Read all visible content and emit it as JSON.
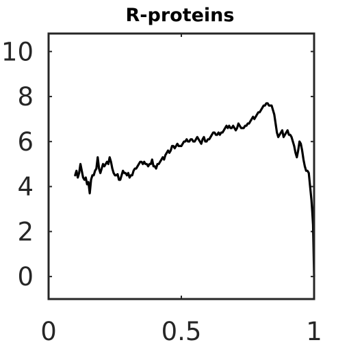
{
  "chart_data": {
    "type": "line",
    "title": "R-proteins",
    "xlabel": "",
    "ylabel": "",
    "xlim": [
      0,
      1
    ],
    "ylim": [
      -1,
      10.8
    ],
    "xticks": [
      0,
      0.5,
      1
    ],
    "xtick_labels": [
      "0",
      "0.5",
      "1"
    ],
    "yticks": [
      0,
      2,
      4,
      6,
      8,
      10
    ],
    "ytick_labels": [
      "0",
      "2",
      "4",
      "6",
      "8",
      "10"
    ],
    "grid": false,
    "series": [
      {
        "color": "#000000",
        "x": [
          0.1,
          0.105,
          0.11,
          0.115,
          0.12,
          0.125,
          0.13,
          0.135,
          0.14,
          0.145,
          0.15,
          0.155,
          0.16,
          0.165,
          0.17,
          0.175,
          0.18,
          0.185,
          0.19,
          0.195,
          0.2,
          0.205,
          0.21,
          0.215,
          0.22,
          0.225,
          0.23,
          0.235,
          0.24,
          0.245,
          0.25,
          0.255,
          0.26,
          0.265,
          0.27,
          0.275,
          0.28,
          0.285,
          0.29,
          0.295,
          0.3,
          0.305,
          0.31,
          0.315,
          0.32,
          0.325,
          0.33,
          0.335,
          0.34,
          0.345,
          0.35,
          0.355,
          0.36,
          0.365,
          0.37,
          0.375,
          0.38,
          0.385,
          0.39,
          0.395,
          0.4,
          0.405,
          0.41,
          0.415,
          0.42,
          0.425,
          0.43,
          0.435,
          0.44,
          0.445,
          0.45,
          0.455,
          0.46,
          0.465,
          0.47,
          0.475,
          0.48,
          0.485,
          0.49,
          0.495,
          0.5,
          0.505,
          0.51,
          0.515,
          0.52,
          0.525,
          0.53,
          0.535,
          0.54,
          0.545,
          0.55,
          0.555,
          0.56,
          0.565,
          0.57,
          0.575,
          0.58,
          0.585,
          0.59,
          0.595,
          0.6,
          0.605,
          0.61,
          0.615,
          0.62,
          0.625,
          0.63,
          0.635,
          0.64,
          0.645,
          0.65,
          0.655,
          0.66,
          0.665,
          0.67,
          0.675,
          0.68,
          0.685,
          0.69,
          0.695,
          0.7,
          0.705,
          0.71,
          0.715,
          0.72,
          0.725,
          0.73,
          0.735,
          0.74,
          0.745,
          0.75,
          0.755,
          0.76,
          0.765,
          0.77,
          0.775,
          0.78,
          0.785,
          0.79,
          0.795,
          0.8,
          0.805,
          0.81,
          0.815,
          0.82,
          0.825,
          0.83,
          0.835,
          0.84,
          0.845,
          0.85,
          0.855,
          0.86,
          0.865,
          0.87,
          0.875,
          0.88,
          0.885,
          0.89,
          0.895,
          0.9,
          0.905,
          0.91,
          0.915,
          0.92,
          0.925,
          0.93,
          0.935,
          0.94,
          0.945,
          0.95,
          0.955,
          0.96,
          0.965,
          0.97,
          0.975,
          0.98,
          0.985,
          0.99,
          0.993,
          0.996,
          0.998,
          1.0
        ],
        "y": [
          4.5,
          4.7,
          4.4,
          4.6,
          5.0,
          4.7,
          4.4,
          4.3,
          4.4,
          4.1,
          4.2,
          3.7,
          4.3,
          4.5,
          4.5,
          4.7,
          4.8,
          5.3,
          4.8,
          4.6,
          4.8,
          5.0,
          4.9,
          5.0,
          5.1,
          5.0,
          5.3,
          5.1,
          4.8,
          4.6,
          4.5,
          4.5,
          4.55,
          4.3,
          4.3,
          4.5,
          4.7,
          4.6,
          4.6,
          4.5,
          4.6,
          4.4,
          4.5,
          4.5,
          4.7,
          4.8,
          4.8,
          4.9,
          5.0,
          5.1,
          5.1,
          5.0,
          5.1,
          5.0,
          5.0,
          4.9,
          5.0,
          5.0,
          5.2,
          4.9,
          4.9,
          4.8,
          5.0,
          5.0,
          5.1,
          5.2,
          5.3,
          5.2,
          5.4,
          5.5,
          5.6,
          5.5,
          5.6,
          5.8,
          5.8,
          5.7,
          5.8,
          5.9,
          5.8,
          5.8,
          5.8,
          5.9,
          6.0,
          6.0,
          6.1,
          6.0,
          6.0,
          6.1,
          6.1,
          6.0,
          6.0,
          6.1,
          6.2,
          6.1,
          6.0,
          5.9,
          6.1,
          6.2,
          6.0,
          6.0,
          6.1,
          6.1,
          6.2,
          6.3,
          6.4,
          6.4,
          6.3,
          6.3,
          6.4,
          6.3,
          6.4,
          6.4,
          6.5,
          6.6,
          6.7,
          6.6,
          6.7,
          6.6,
          6.6,
          6.7,
          6.6,
          6.5,
          6.6,
          6.8,
          6.7,
          6.6,
          6.6,
          6.6,
          6.7,
          6.7,
          6.8,
          6.8,
          6.9,
          7.0,
          7.1,
          7.0,
          7.1,
          7.2,
          7.3,
          7.3,
          7.4,
          7.5,
          7.6,
          7.6,
          7.7,
          7.7,
          7.6,
          7.6,
          7.6,
          7.4,
          7.2,
          6.8,
          6.4,
          6.2,
          6.3,
          6.4,
          6.5,
          6.2,
          6.3,
          6.4,
          6.5,
          6.3,
          6.3,
          6.2,
          6.0,
          5.8,
          5.5,
          5.3,
          5.6,
          6.0,
          5.9,
          5.6,
          5.2,
          4.9,
          4.7,
          4.7,
          4.6,
          4.0,
          3.4,
          2.9,
          2.3,
          1.2,
          0.0
        ]
      }
    ]
  }
}
